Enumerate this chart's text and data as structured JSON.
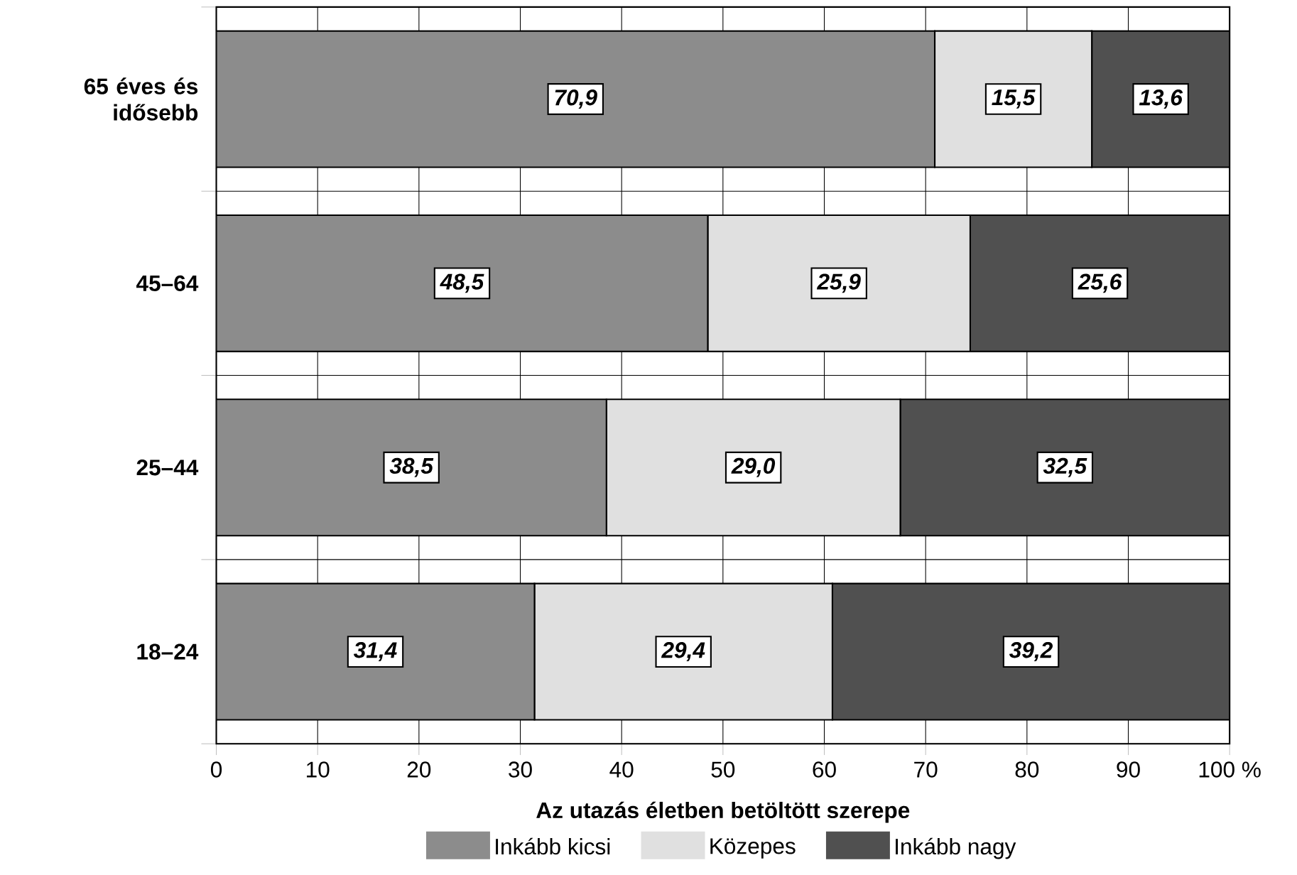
{
  "chart_data": {
    "type": "bar",
    "orientation": "horizontal",
    "stacked": true,
    "categories": [
      "65 éves és idősebb",
      "45–64",
      "25–44",
      "18–24"
    ],
    "series": [
      {
        "name": "Inkább kicsi",
        "color": "#8c8c8c",
        "values": [
          70.9,
          48.5,
          38.5,
          31.4
        ],
        "value_labels": [
          "70,9",
          "48,5",
          "38,5",
          "31,4"
        ]
      },
      {
        "name": "Közepes",
        "color": "#e0e0e0",
        "values": [
          15.5,
          25.9,
          29.0,
          29.4
        ],
        "value_labels": [
          "15,5",
          "25,9",
          "29,0",
          "29,4"
        ]
      },
      {
        "name": "Inkább nagy",
        "color": "#505050",
        "values": [
          13.6,
          25.6,
          32.5,
          39.2
        ],
        "value_labels": [
          "13,6",
          "25,6",
          "32,5",
          "39,2"
        ]
      }
    ],
    "xlabel": "Az utazás életben betöltött szerepe",
    "xlim": [
      0,
      100
    ],
    "xticks": [
      0,
      10,
      20,
      30,
      40,
      50,
      60,
      70,
      80,
      90,
      {
        "value": 100,
        "label": "100 %"
      }
    ],
    "grid": true,
    "legend": "bottom"
  }
}
